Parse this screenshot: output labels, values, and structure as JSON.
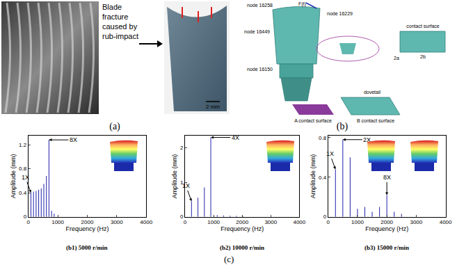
{
  "panels": {
    "a": {
      "label": "(a)",
      "caption": [
        "Blade",
        "fracture",
        "caused by",
        "rub-impact"
      ],
      "scale_bar": "2 mm"
    },
    "b": {
      "label": "(b)",
      "node_labels": [
        "node 16258",
        "F(t)",
        "node 16229",
        "node 16449",
        "node 16150"
      ],
      "part_labels": [
        "dovetail",
        "contact surface",
        "A contact surface",
        "B contact surface",
        "2a",
        "2b"
      ]
    }
  },
  "group_label": "(c)",
  "chart_data": [
    {
      "type": "bar",
      "title": "(b1) 5000 r/min",
      "xlabel": "Frequency (Hz)",
      "ylabel": "Amplitude (mm)",
      "x": [
        88,
        175,
        263,
        350,
        438,
        525,
        613,
        700,
        788,
        875
      ],
      "values": [
        0.4,
        0.42,
        0.43,
        0.45,
        0.47,
        0.55,
        0.68,
        1.28,
        0.1,
        0.05
      ],
      "color": "#2b2bb0",
      "xlim": [
        0,
        4000
      ],
      "xticks": [
        0,
        1000,
        2000,
        3000,
        4000
      ],
      "ylim": [
        0,
        1.35
      ],
      "yticks": [
        0,
        0.4,
        0.8,
        1.2
      ],
      "grid": false,
      "annotations": [
        {
          "text": "1X",
          "x": 88,
          "y": 0.4
        },
        {
          "text": "8X",
          "x": 700,
          "y": 1.28
        }
      ]
    },
    {
      "type": "bar",
      "title": "(b2) 10000 r/min",
      "xlabel": "Frequency (Hz)",
      "ylabel": "Amplitude (mm)",
      "x": [
        225,
        450,
        675,
        900,
        1125,
        1350,
        1575,
        1800,
        2025
      ],
      "values": [
        0.45,
        0.55,
        0.85,
        2.3,
        0.05,
        0.04,
        0.03,
        0.03,
        0.02
      ],
      "color": "#2b2bb0",
      "xlim": [
        0,
        4000
      ],
      "xticks": [
        0,
        1000,
        2000,
        3000,
        4000
      ],
      "ylim": [
        0,
        2.35
      ],
      "yticks": [
        0,
        1,
        2
      ],
      "grid": false,
      "annotations": [
        {
          "text": "1X",
          "x": 225,
          "y": 0.45
        },
        {
          "text": "4X",
          "x": 900,
          "y": 2.3
        }
      ]
    },
    {
      "type": "bar",
      "title": "(b3) 15000 r/min",
      "xlabel": "Frequency (Hz)",
      "ylabel": "Amplitude (mm)",
      "x": [
        250,
        500,
        750,
        1000,
        1250,
        1500,
        1750,
        2000,
        2250,
        2500
      ],
      "values": [
        0.48,
        0.78,
        0.6,
        0.08,
        0.1,
        0.05,
        0.1,
        0.22,
        0.05,
        0.03
      ],
      "color": "#2b2bb0",
      "xlim": [
        0,
        4000
      ],
      "xticks": [
        0,
        1000,
        2000,
        3000,
        4000
      ],
      "ylim": [
        0,
        0.82
      ],
      "yticks": [
        0,
        0.4,
        0.8
      ],
      "grid": false,
      "annotations": [
        {
          "text": "1X",
          "x": 250,
          "y": 0.48
        },
        {
          "text": "2X",
          "x": 500,
          "y": 0.78
        },
        {
          "text": "8X",
          "x": 2000,
          "y": 0.22
        }
      ]
    }
  ]
}
